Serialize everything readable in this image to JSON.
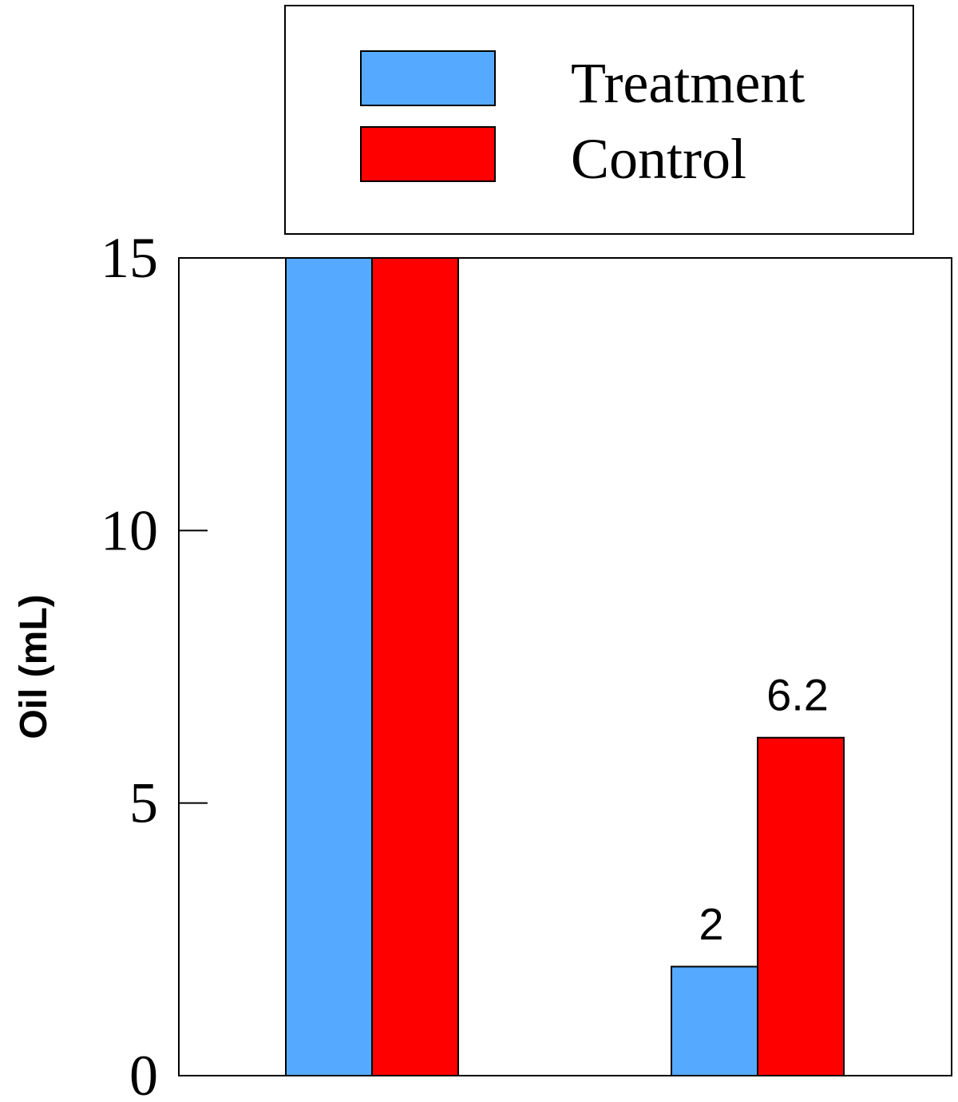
{
  "chart_data": {
    "type": "bar",
    "categories": [
      "",
      ""
    ],
    "series": [
      {
        "name": "Treatment",
        "color": "#55AAFF",
        "values": [
          15,
          2
        ],
        "data_labels": [
          "",
          "2"
        ]
      },
      {
        "name": "Control",
        "color": "#FF0000",
        "values": [
          15,
          6.2
        ],
        "data_labels": [
          "",
          "6.2"
        ]
      }
    ],
    "title": "",
    "xlabel": "",
    "ylabel": "Oil (mL)",
    "ylim": [
      0,
      15
    ],
    "yticks": [
      0,
      5,
      10,
      15
    ],
    "ytick_labels": [
      "0",
      "5",
      "10",
      "15"
    ],
    "grid": false,
    "legend": {
      "placement": "top, above plot",
      "items": [
        "Treatment",
        "Control"
      ]
    }
  }
}
